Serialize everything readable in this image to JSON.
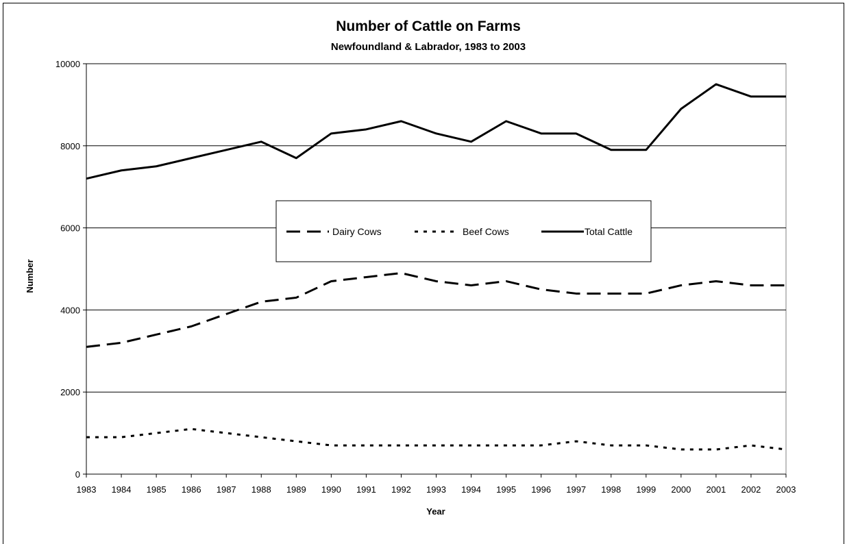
{
  "chart_data": {
    "type": "line",
    "title": "Number of Cattle on Farms",
    "subtitle": "Newfoundland & Labrador, 1983 to 2003",
    "xlabel": "Year",
    "ylabel": "Number",
    "ylim": [
      0,
      10000
    ],
    "yticks": [
      0,
      2000,
      4000,
      6000,
      8000,
      10000
    ],
    "x": [
      1983,
      1984,
      1985,
      1986,
      1987,
      1988,
      1989,
      1990,
      1991,
      1992,
      1993,
      1994,
      1995,
      1996,
      1997,
      1998,
      1999,
      2000,
      2001,
      2002,
      2003
    ],
    "grid": "horizontal",
    "legend_position": "center",
    "series": [
      {
        "name": "Dairy Cows",
        "style": "dashed",
        "color": "#000000",
        "values": [
          3100,
          3200,
          3400,
          3600,
          3900,
          4200,
          4300,
          4700,
          4800,
          4900,
          4700,
          4600,
          4700,
          4500,
          4400,
          4400,
          4400,
          4600,
          4700,
          4600,
          4600
        ]
      },
      {
        "name": "Beef Cows",
        "style": "dotted",
        "color": "#000000",
        "values": [
          900,
          900,
          1000,
          1100,
          1000,
          900,
          800,
          700,
          700,
          700,
          700,
          700,
          700,
          700,
          800,
          700,
          700,
          600,
          600,
          700,
          600
        ]
      },
      {
        "name": "Total Cattle",
        "style": "solid",
        "color": "#000000",
        "values": [
          7200,
          7400,
          7500,
          7700,
          7900,
          8100,
          7700,
          8300,
          8400,
          8600,
          8300,
          8100,
          8600,
          8300,
          8300,
          7900,
          7900,
          8900,
          9500,
          9200,
          9200
        ]
      }
    ]
  }
}
